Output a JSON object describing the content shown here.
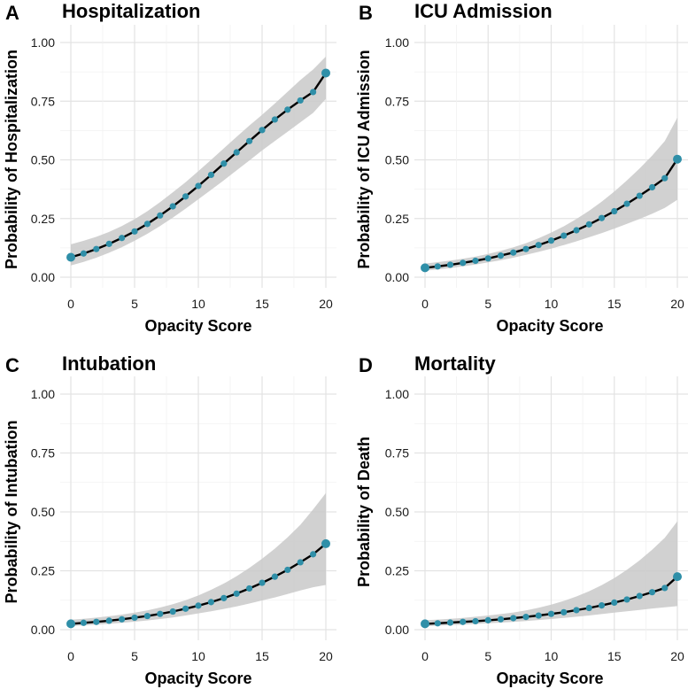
{
  "chart_data": [
    {
      "panel": "A",
      "type": "line",
      "title": "Hospitalization",
      "xlabel": "Opacity Score",
      "ylabel": "Probability of Hospitalization",
      "xlim": [
        0,
        20
      ],
      "ylim": [
        0,
        1
      ],
      "x_ticks": [
        0,
        5,
        10,
        15,
        20
      ],
      "y_ticks": [
        "0.00",
        "0.25",
        "0.50",
        "0.75",
        "1.00"
      ],
      "x": [
        0,
        1,
        2,
        3,
        4,
        5,
        6,
        7,
        8,
        9,
        10,
        11,
        12,
        13,
        14,
        15,
        16,
        17,
        18,
        19,
        20
      ],
      "series": [
        {
          "name": "predicted",
          "values": [
            0.085,
            0.101,
            0.12,
            0.142,
            0.167,
            0.195,
            0.227,
            0.263,
            0.302,
            0.344,
            0.389,
            0.436,
            0.484,
            0.532,
            0.58,
            0.627,
            0.672,
            0.714,
            0.753,
            0.789,
            0.87
          ]
        },
        {
          "name": "ci_lower",
          "values": [
            0.05,
            0.065,
            0.083,
            0.104,
            0.128,
            0.155,
            0.185,
            0.218,
            0.254,
            0.292,
            0.332,
            0.372,
            0.413,
            0.455,
            0.497,
            0.54,
            0.58,
            0.62,
            0.66,
            0.7,
            0.76
          ]
        },
        {
          "name": "ci_upper",
          "values": [
            0.14,
            0.155,
            0.172,
            0.193,
            0.218,
            0.247,
            0.281,
            0.32,
            0.362,
            0.405,
            0.452,
            0.5,
            0.549,
            0.598,
            0.646,
            0.692,
            0.74,
            0.79,
            0.84,
            0.885,
            0.94
          ]
        }
      ]
    },
    {
      "panel": "B",
      "type": "line",
      "title": "ICU Admission",
      "xlabel": "Opacity Score",
      "ylabel": "Probability of ICU Admission",
      "xlim": [
        0,
        20
      ],
      "ylim": [
        0,
        1
      ],
      "x_ticks": [
        0,
        5,
        10,
        15,
        20
      ],
      "y_ticks": [
        "0.00",
        "0.25",
        "0.50",
        "0.75",
        "1.00"
      ],
      "x": [
        0,
        1,
        2,
        3,
        4,
        5,
        6,
        7,
        8,
        9,
        10,
        11,
        12,
        13,
        14,
        15,
        16,
        17,
        18,
        19,
        20
      ],
      "series": [
        {
          "name": "predicted",
          "values": [
            0.04,
            0.046,
            0.053,
            0.061,
            0.07,
            0.08,
            0.092,
            0.105,
            0.12,
            0.137,
            0.156,
            0.177,
            0.2,
            0.225,
            0.252,
            0.281,
            0.313,
            0.347,
            0.383,
            0.422,
            0.503
          ]
        },
        {
          "name": "ci_lower",
          "values": [
            0.028,
            0.033,
            0.039,
            0.046,
            0.054,
            0.063,
            0.072,
            0.083,
            0.095,
            0.108,
            0.122,
            0.137,
            0.153,
            0.17,
            0.188,
            0.207,
            0.227,
            0.248,
            0.27,
            0.295,
            0.33
          ]
        },
        {
          "name": "ci_upper",
          "values": [
            0.058,
            0.064,
            0.071,
            0.079,
            0.088,
            0.099,
            0.112,
            0.127,
            0.145,
            0.166,
            0.19,
            0.217,
            0.248,
            0.283,
            0.322,
            0.365,
            0.412,
            0.463,
            0.518,
            0.58,
            0.68
          ]
        }
      ]
    },
    {
      "panel": "C",
      "type": "line",
      "title": "Intubation",
      "xlabel": "Opacity Score",
      "ylabel": "Probability of Intubation",
      "xlim": [
        0,
        20
      ],
      "ylim": [
        0,
        1
      ],
      "x_ticks": [
        0,
        5,
        10,
        15,
        20
      ],
      "y_ticks": [
        "0.00",
        "0.25",
        "0.50",
        "0.75",
        "1.00"
      ],
      "x": [
        0,
        1,
        2,
        3,
        4,
        5,
        6,
        7,
        8,
        9,
        10,
        11,
        12,
        13,
        14,
        15,
        16,
        17,
        18,
        19,
        20
      ],
      "series": [
        {
          "name": "predicted",
          "values": [
            0.025,
            0.029,
            0.033,
            0.038,
            0.044,
            0.051,
            0.058,
            0.067,
            0.077,
            0.089,
            0.102,
            0.117,
            0.134,
            0.153,
            0.175,
            0.199,
            0.225,
            0.254,
            0.286,
            0.32,
            0.365
          ]
        },
        {
          "name": "ci_lower",
          "values": [
            0.015,
            0.018,
            0.021,
            0.025,
            0.029,
            0.034,
            0.039,
            0.045,
            0.052,
            0.06,
            0.069,
            0.078,
            0.088,
            0.099,
            0.111,
            0.124,
            0.137,
            0.151,
            0.166,
            0.18,
            0.19
          ]
        },
        {
          "name": "ci_upper",
          "values": [
            0.042,
            0.046,
            0.051,
            0.057,
            0.064,
            0.072,
            0.082,
            0.094,
            0.108,
            0.125,
            0.145,
            0.169,
            0.196,
            0.227,
            0.262,
            0.301,
            0.344,
            0.392,
            0.445,
            0.51,
            0.58
          ]
        }
      ]
    },
    {
      "panel": "D",
      "type": "line",
      "title": "Mortality",
      "xlabel": "Opacity Score",
      "ylabel": "Probability of Death",
      "xlim": [
        0,
        20
      ],
      "ylim": [
        0,
        1
      ],
      "x_ticks": [
        0,
        5,
        10,
        15,
        20
      ],
      "y_ticks": [
        "0.00",
        "0.25",
        "0.50",
        "0.75",
        "1.00"
      ],
      "x": [
        0,
        1,
        2,
        3,
        4,
        5,
        6,
        7,
        8,
        9,
        10,
        11,
        12,
        13,
        14,
        15,
        16,
        17,
        18,
        19,
        20
      ],
      "series": [
        {
          "name": "predicted",
          "values": [
            0.025,
            0.027,
            0.03,
            0.033,
            0.036,
            0.04,
            0.044,
            0.049,
            0.054,
            0.06,
            0.067,
            0.074,
            0.083,
            0.092,
            0.103,
            0.115,
            0.128,
            0.143,
            0.159,
            0.177,
            0.225
          ]
        },
        {
          "name": "ci_lower",
          "values": [
            0.015,
            0.017,
            0.019,
            0.021,
            0.024,
            0.027,
            0.03,
            0.033,
            0.037,
            0.041,
            0.045,
            0.05,
            0.055,
            0.06,
            0.066,
            0.072,
            0.078,
            0.084,
            0.09,
            0.095,
            0.1
          ]
        },
        {
          "name": "ci_upper",
          "values": [
            0.04,
            0.043,
            0.046,
            0.05,
            0.055,
            0.06,
            0.066,
            0.073,
            0.082,
            0.093,
            0.106,
            0.122,
            0.141,
            0.163,
            0.189,
            0.219,
            0.254,
            0.294,
            0.339,
            0.39,
            0.46
          ]
        }
      ]
    }
  ],
  "colors": {
    "point": "#2f8fa8",
    "line": "#000000",
    "band": "#c9c9c9",
    "grid_major": "#e3e3e3",
    "grid_minor": "#f1f1f1"
  }
}
